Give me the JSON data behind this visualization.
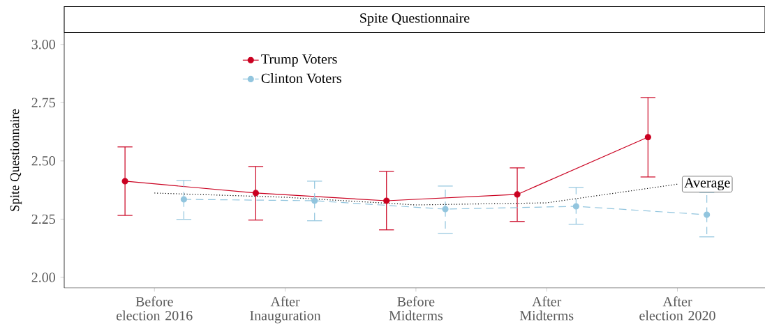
{
  "chart_data": {
    "type": "line",
    "title": "Spite Questionnaire",
    "ylabel": "Spite Questionnaire",
    "categories": [
      "Before election 2016",
      "After Inauguration",
      "Before Midterms",
      "After Midterms",
      "After election 2020"
    ],
    "ylim": [
      1.955,
      3.05
    ],
    "yticks": [
      {
        "value": 2,
        "label": "2.00"
      },
      {
        "value": 2.25,
        "label": "2.25"
      },
      {
        "value": 2.5,
        "label": "2.50"
      },
      {
        "value": 2.75,
        "label": "2.75"
      },
      {
        "value": 3,
        "label": "3.00"
      }
    ],
    "grid": false,
    "legend": "top left",
    "marker": "circle",
    "series": [
      {
        "name": "Trump Voters",
        "color": "#ca0020",
        "line_style": "solid",
        "values": [
          2.413,
          2.362,
          2.329,
          2.356,
          2.602
        ],
        "errors": [
          [
            2.266,
            2.56
          ],
          [
            2.246,
            2.476
          ],
          [
            2.204,
            2.455
          ],
          [
            2.24,
            2.47
          ],
          [
            2.431,
            2.772
          ]
        ]
      },
      {
        "name": "Clinton Voters",
        "color": "#92c5de",
        "line_style": "dashed",
        "values": [
          2.335,
          2.329,
          2.293,
          2.305,
          2.269
        ],
        "errors": [
          [
            2.249,
            2.416
          ],
          [
            2.243,
            2.413
          ],
          [
            2.189,
            2.392
          ],
          [
            2.228,
            2.386
          ],
          [
            2.174,
            2.365
          ]
        ]
      },
      {
        "color": "#000000",
        "line_style": "dotted",
        "marker": "none",
        "values": [
          2.362,
          2.344,
          2.311,
          2.32,
          2.4
        ]
      }
    ],
    "annotations": [
      "Average"
    ]
  }
}
